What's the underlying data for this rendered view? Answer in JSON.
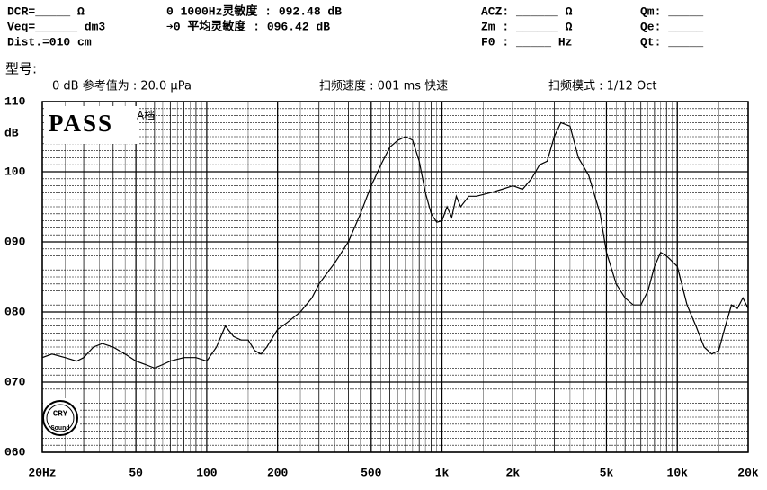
{
  "chart_data": {
    "type": "line",
    "header": [
      {
        "text": "DCR=_____ Ω",
        "col": 0,
        "row": 0
      },
      {
        "text": "0 1000Hz灵敏度 : 092.48 dB",
        "col": 1,
        "row": 0
      },
      {
        "text": "ACZ: ______ Ω",
        "col": 2,
        "row": 0
      },
      {
        "text": "Qm: _____",
        "col": 3,
        "row": 0
      },
      {
        "text": "Veq=______ dm3",
        "col": 0,
        "row": 1
      },
      {
        "text": "➔0 平均灵敏度 : 096.42 dB",
        "col": 1,
        "row": 1
      },
      {
        "text": "Zm : ______ Ω",
        "col": 2,
        "row": 1
      },
      {
        "text": "Qe: _____",
        "col": 3,
        "row": 1
      },
      {
        "text": "Dist.=010 cm",
        "col": 0,
        "row": 2
      },
      {
        "text": "F0 : _____ Hz",
        "col": 2,
        "row": 2
      },
      {
        "text": "Qt: _____",
        "col": 3,
        "row": 2
      }
    ],
    "model_label": "型号:",
    "info": [
      "0 dB 参考值为 : 20.0 µPa",
      "扫频速度 : 001 ms 快速",
      "扫频模式 : 1/12 Oct"
    ],
    "y_label": "dB",
    "status": "PASS",
    "grade": "A档",
    "logo": [
      "CRY",
      "Sound"
    ],
    "xscale": "log",
    "xlim": [
      20,
      20000
    ],
    "ylim": [
      60,
      110
    ],
    "xticks": [
      {
        "value": 20,
        "label": "20Hz"
      },
      50,
      100,
      200,
      500,
      {
        "value": 1000,
        "label": "1k"
      },
      {
        "value": 2000,
        "label": "2k"
      },
      {
        "value": 5000,
        "label": "5k"
      },
      {
        "value": 10000,
        "label": "10k"
      },
      {
        "value": 20000,
        "label": "20k"
      }
    ],
    "yticks": [
      {
        "value": 60,
        "label": "060"
      },
      {
        "value": 70,
        "label": "070"
      },
      {
        "value": 80,
        "label": "080"
      },
      {
        "value": 90,
        "label": "090"
      },
      100,
      110
    ],
    "grid": true,
    "x": [
      20,
      22,
      25,
      28,
      30,
      33,
      36,
      40,
      45,
      50,
      55,
      60,
      65,
      70,
      80,
      90,
      100,
      110,
      120,
      130,
      140,
      150,
      160,
      170,
      180,
      200,
      220,
      250,
      280,
      300,
      350,
      400,
      450,
      500,
      550,
      600,
      650,
      700,
      750,
      800,
      850,
      900,
      950,
      1000,
      1050,
      1100,
      1150,
      1200,
      1300,
      1400,
      1600,
      1800,
      2000,
      2200,
      2400,
      2600,
      2800,
      3000,
      3200,
      3500,
      3800,
      4200,
      4700,
      5000,
      5500,
      6000,
      6500,
      7000,
      7500,
      8000,
      8500,
      9000,
      10000,
      11000,
      12000,
      13000,
      14000,
      15000,
      16000,
      17000,
      18000,
      19000,
      20000
    ],
    "series": [
      {
        "color": "#000000",
        "values": [
          73.5,
          74,
          73.5,
          73,
          73.5,
          75,
          75.5,
          75,
          74,
          73,
          72.5,
          72,
          72.5,
          73,
          73.5,
          73.5,
          73,
          75,
          78,
          76.5,
          76,
          76,
          74.5,
          74,
          75,
          77.5,
          78.5,
          80,
          82,
          84,
          87,
          90,
          94,
          98,
          101,
          103.5,
          104.5,
          105,
          104.5,
          101.5,
          97,
          94,
          92.8,
          93,
          95,
          93.5,
          96.5,
          95,
          96.5,
          96.5,
          97,
          97.5,
          98,
          97.5,
          99,
          101,
          101.5,
          105,
          107,
          106.5,
          102,
          99.5,
          94,
          88.5,
          84,
          82,
          81,
          81,
          83,
          86.5,
          88.5,
          88,
          86.5,
          81,
          78,
          75,
          74,
          74.5,
          78,
          81,
          80.5,
          82,
          80.5
        ]
      }
    ]
  }
}
